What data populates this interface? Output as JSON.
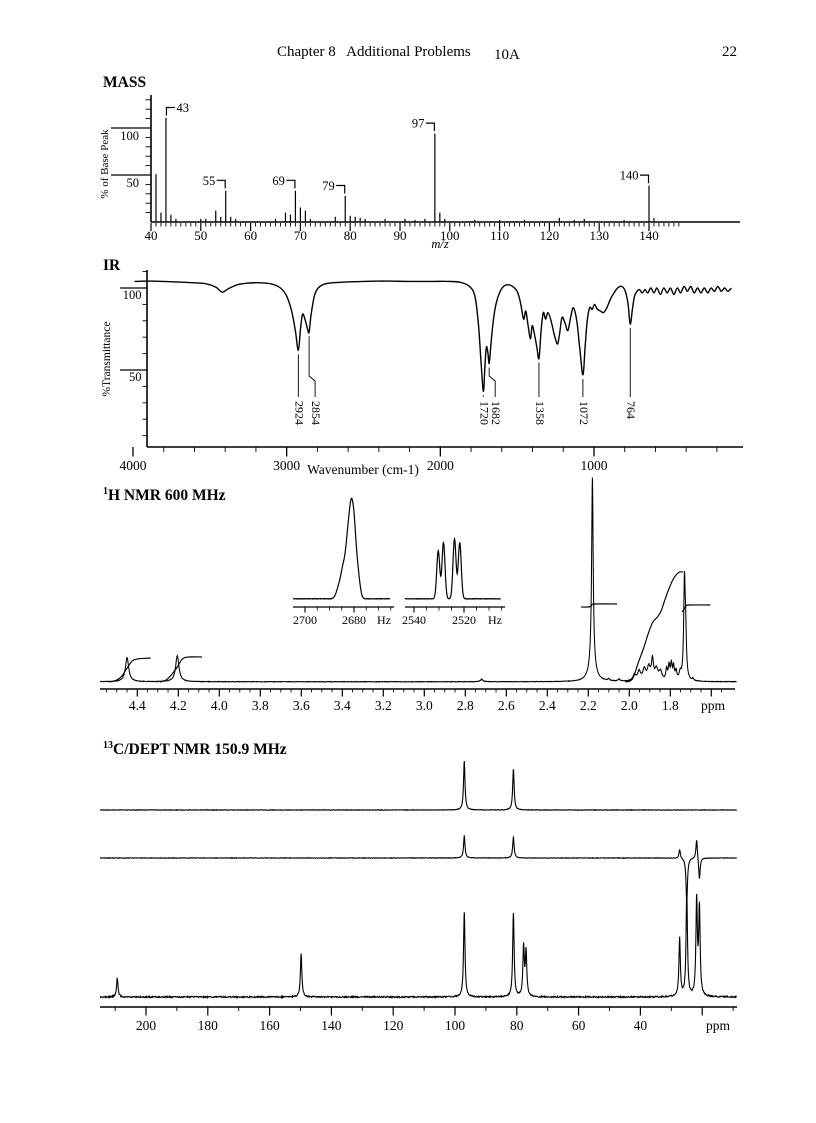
{
  "header": {
    "course": "Chapter 8   Additional Problems",
    "problem_id": "10A",
    "page_number": "22"
  },
  "chart_data": [
    {
      "id": "mass",
      "type": "bar",
      "title": "MASS",
      "xlabel": "m/z",
      "ylabel": "% of Base Peak",
      "yticks": [
        100,
        50
      ],
      "xticks": [
        40,
        50,
        60,
        70,
        80,
        90,
        100,
        110,
        120,
        130,
        140
      ],
      "xrange": [
        40,
        146
      ],
      "labeled": [
        43,
        55,
        69,
        79,
        97,
        140
      ],
      "peaks": [
        [
          41,
          46
        ],
        [
          42,
          9
        ],
        [
          43,
          100
        ],
        [
          44,
          7
        ],
        [
          45,
          3
        ],
        [
          50,
          3
        ],
        [
          51,
          3
        ],
        [
          53,
          11
        ],
        [
          54,
          5
        ],
        [
          55,
          30
        ],
        [
          56,
          5
        ],
        [
          57,
          3
        ],
        [
          65,
          3
        ],
        [
          67,
          9
        ],
        [
          68,
          7
        ],
        [
          69,
          30
        ],
        [
          70,
          14
        ],
        [
          71,
          11
        ],
        [
          72,
          3
        ],
        [
          77,
          5
        ],
        [
          79,
          25
        ],
        [
          80,
          6
        ],
        [
          81,
          5
        ],
        [
          82,
          4
        ],
        [
          83,
          3
        ],
        [
          87,
          3
        ],
        [
          91,
          3
        ],
        [
          93,
          2
        ],
        [
          95,
          3
        ],
        [
          97,
          85
        ],
        [
          98,
          9
        ],
        [
          99,
          3
        ],
        [
          105,
          2
        ],
        [
          110,
          2
        ],
        [
          115,
          2
        ],
        [
          122,
          4
        ],
        [
          125,
          2
        ],
        [
          127,
          3
        ],
        [
          135,
          2
        ],
        [
          140,
          35
        ],
        [
          141,
          4
        ]
      ]
    },
    {
      "id": "ir",
      "type": "line",
      "title": "IR",
      "xlabel": "Wavenumber (cm-1)",
      "ylabel": "%Transmittance",
      "yticks": [
        100,
        50
      ],
      "xticks": [
        4000,
        3000,
        2000,
        1000
      ],
      "band_labels": [
        [
          2924,
          62
        ],
        [
          2854,
          73
        ],
        [
          1720,
          37
        ],
        [
          1682,
          54
        ],
        [
          1358,
          57
        ],
        [
          1072,
          47
        ],
        [
          764,
          78
        ]
      ],
      "curve": [
        [
          3990,
          104
        ],
        [
          3900,
          104.2
        ],
        [
          3800,
          104
        ],
        [
          3700,
          103.6
        ],
        [
          3600,
          103.2
        ],
        [
          3520,
          102.5
        ],
        [
          3460,
          100.5
        ],
        [
          3420,
          97.5
        ],
        [
          3380,
          99.5
        ],
        [
          3320,
          102
        ],
        [
          3250,
          103
        ],
        [
          3180,
          103.2
        ],
        [
          3100,
          102.5
        ],
        [
          3040,
          100
        ],
        [
          3000,
          95
        ],
        [
          2965,
          85
        ],
        [
          2942,
          73
        ],
        [
          2924,
          62
        ],
        [
          2910,
          75
        ],
        [
          2896,
          84
        ],
        [
          2878,
          80
        ],
        [
          2864,
          75
        ],
        [
          2854,
          73
        ],
        [
          2842,
          83
        ],
        [
          2820,
          95
        ],
        [
          2795,
          100
        ],
        [
          2750,
          102.5
        ],
        [
          2650,
          103.5
        ],
        [
          2500,
          104
        ],
        [
          2350,
          104.2
        ],
        [
          2200,
          104
        ],
        [
          2050,
          104
        ],
        [
          1950,
          104
        ],
        [
          1870,
          103.5
        ],
        [
          1810,
          101
        ],
        [
          1775,
          95
        ],
        [
          1752,
          78
        ],
        [
          1735,
          55
        ],
        [
          1720,
          37
        ],
        [
          1710,
          52
        ],
        [
          1700,
          64
        ],
        [
          1690,
          60
        ],
        [
          1682,
          54
        ],
        [
          1672,
          64
        ],
        [
          1658,
          78
        ],
        [
          1640,
          89
        ],
        [
          1615,
          97
        ],
        [
          1588,
          101
        ],
        [
          1560,
          102
        ],
        [
          1530,
          101
        ],
        [
          1500,
          98
        ],
        [
          1478,
          91
        ],
        [
          1458,
          81
        ],
        [
          1444,
          86
        ],
        [
          1430,
          78
        ],
        [
          1414,
          69
        ],
        [
          1402,
          77
        ],
        [
          1388,
          72
        ],
        [
          1372,
          64
        ],
        [
          1358,
          57
        ],
        [
          1344,
          74
        ],
        [
          1330,
          85
        ],
        [
          1315,
          81
        ],
        [
          1300,
          85
        ],
        [
          1282,
          81
        ],
        [
          1262,
          73
        ],
        [
          1248,
          68
        ],
        [
          1236,
          66
        ],
        [
          1224,
          72
        ],
        [
          1208,
          82
        ],
        [
          1190,
          79
        ],
        [
          1170,
          74
        ],
        [
          1152,
          82
        ],
        [
          1134,
          88
        ],
        [
          1112,
          80
        ],
        [
          1092,
          63
        ],
        [
          1072,
          47
        ],
        [
          1058,
          64
        ],
        [
          1044,
          80
        ],
        [
          1028,
          88
        ],
        [
          1012,
          87
        ],
        [
          996,
          90
        ],
        [
          978,
          87
        ],
        [
          958,
          86
        ],
        [
          938,
          85
        ],
        [
          916,
          88
        ],
        [
          894,
          93
        ],
        [
          870,
          97
        ],
        [
          846,
          100
        ],
        [
          820,
          101
        ],
        [
          796,
          98
        ],
        [
          778,
          90
        ],
        [
          764,
          78
        ],
        [
          750,
          87
        ],
        [
          736,
          95
        ],
        [
          720,
          98
        ],
        [
          704,
          99
        ],
        [
          686,
          97
        ],
        [
          668,
          99
        ],
        [
          650,
          97
        ],
        [
          630,
          100
        ],
        [
          610,
          97
        ],
        [
          590,
          100
        ],
        [
          568,
          96
        ],
        [
          546,
          100
        ],
        [
          524,
          97
        ],
        [
          502,
          100
        ],
        [
          480,
          96
        ],
        [
          458,
          100
        ],
        [
          436,
          97
        ],
        [
          414,
          101
        ],
        [
          392,
          98
        ],
        [
          370,
          101
        ],
        [
          348,
          97
        ],
        [
          326,
          100
        ],
        [
          304,
          97
        ],
        [
          282,
          100
        ],
        [
          260,
          97
        ],
        [
          238,
          100
        ],
        [
          216,
          98
        ],
        [
          194,
          101
        ],
        [
          172,
          98
        ],
        [
          150,
          100
        ],
        [
          128,
          98
        ],
        [
          106,
          100
        ]
      ]
    },
    {
      "id": "h1",
      "type": "line",
      "title_sup": "1",
      "title": "H NMR 600 MHz",
      "xunit": "ppm",
      "xticks": [
        4.4,
        4.2,
        4.0,
        3.8,
        3.6,
        3.4,
        3.2,
        3.0,
        2.8,
        2.6,
        2.4,
        2.2,
        2.0,
        1.8
      ],
      "xrange": [
        4.58,
        1.48
      ],
      "peaks": [
        [
          4.45,
          24,
          2.0
        ],
        [
          4.205,
          26,
          2.0
        ],
        [
          2.72,
          2.5,
          1.5
        ],
        [
          2.18,
          186,
          0.9
        ],
        [
          2.181,
          18,
          3.5
        ],
        [
          2.1,
          2,
          1.0
        ],
        [
          2.05,
          2,
          1.0
        ],
        [
          1.975,
          6,
          1.8
        ],
        [
          1.952,
          9,
          1.8
        ],
        [
          1.927,
          11,
          1.8
        ],
        [
          1.905,
          13,
          1.8
        ],
        [
          1.887,
          20,
          1.2
        ],
        [
          1.868,
          11,
          1.8
        ],
        [
          1.848,
          9,
          1.8
        ],
        [
          1.818,
          11,
          0.9
        ],
        [
          1.806,
          14,
          0.9
        ],
        [
          1.795,
          16,
          0.9
        ],
        [
          1.784,
          13,
          0.9
        ],
        [
          1.772,
          9,
          0.9
        ],
        [
          1.752,
          7,
          1.2
        ],
        [
          1.731,
          96,
          0.9
        ],
        [
          1.725,
          38,
          0.9
        ],
        [
          1.69,
          2,
          1.0
        ]
      ],
      "integrals": [
        [
          [
            4.535,
            0
          ],
          [
            4.5,
            2
          ],
          [
            4.475,
            6
          ],
          [
            4.45,
            14
          ],
          [
            4.425,
            21
          ],
          [
            4.4,
            23
          ],
          [
            4.335,
            24
          ]
        ],
        [
          [
            4.29,
            0
          ],
          [
            4.26,
            2
          ],
          [
            4.23,
            8
          ],
          [
            4.205,
            15
          ],
          [
            4.18,
            23
          ],
          [
            4.15,
            25
          ],
          [
            4.085,
            25
          ]
        ],
        [
          [
            2.235,
            75
          ],
          [
            2.2,
            75
          ],
          [
            2.185,
            76
          ],
          [
            2.172,
            78
          ],
          [
            2.06,
            78
          ]
        ],
        [
          [
            2.02,
            0
          ],
          [
            1.985,
            3
          ],
          [
            1.955,
            20
          ],
          [
            1.93,
            34
          ],
          [
            1.905,
            50
          ],
          [
            1.885,
            60
          ],
          [
            1.863,
            65
          ],
          [
            1.845,
            71
          ],
          [
            1.825,
            83
          ],
          [
            1.805,
            94
          ],
          [
            1.788,
            102
          ],
          [
            1.772,
            107
          ],
          [
            1.755,
            110
          ],
          [
            1.738,
            110
          ]
        ],
        [
          [
            1.742,
            70
          ],
          [
            1.733,
            73
          ],
          [
            1.724,
            76
          ],
          [
            1.71,
            77
          ],
          [
            1.605,
            77
          ]
        ]
      ],
      "insets": [
        {
          "xticks": [
            2700,
            2680
          ],
          "unit": "Hz",
          "peaks": [
            [
              2686,
              12,
              1.6
            ],
            [
              2684.2,
              28,
              1.4
            ],
            [
              2682.5,
              50,
              1.2
            ],
            [
              2681.2,
              66,
              1.1
            ],
            [
              2680,
              57,
              1.1
            ],
            [
              2678.6,
              28,
              1.3
            ]
          ]
        },
        {
          "xticks": [
            2540,
            2520
          ],
          "unit": "Hz",
          "peaks": [
            [
              2530.3,
              48,
              0.85
            ],
            [
              2528.2,
              56,
              0.85
            ],
            [
              2523.8,
              60,
              0.85
            ],
            [
              2521.7,
              56,
              0.85
            ]
          ]
        }
      ]
    },
    {
      "id": "c13",
      "type": "line",
      "title_sup": "13",
      "title": "C/DEPT NMR 150.9 MHz",
      "xunit": "ppm",
      "xticks": [
        200,
        180,
        160,
        140,
        120,
        100,
        80,
        60,
        40
      ],
      "xrange": [
        215,
        8
      ],
      "traces": [
        {
          "peaks": [
            [
              97.0,
              49
            ],
            [
              81.1,
              41
            ]
          ]
        },
        {
          "peaks": [
            [
              97.0,
              22
            ],
            [
              81.1,
              21
            ],
            [
              27.3,
              9
            ],
            [
              21.8,
              20
            ],
            [
              25.0,
              -45
            ],
            [
              20.9,
              -22
            ]
          ]
        },
        {
          "peaks": [
            [
              209.3,
              19
            ],
            [
              149.8,
              43
            ],
            [
              97.0,
              85
            ],
            [
              81.1,
              84
            ],
            [
              77.8,
              49
            ],
            [
              77.0,
              44
            ],
            [
              27.3,
              58
            ],
            [
              25.0,
              103
            ],
            [
              21.8,
              95
            ],
            [
              20.9,
              87
            ]
          ]
        }
      ]
    }
  ]
}
